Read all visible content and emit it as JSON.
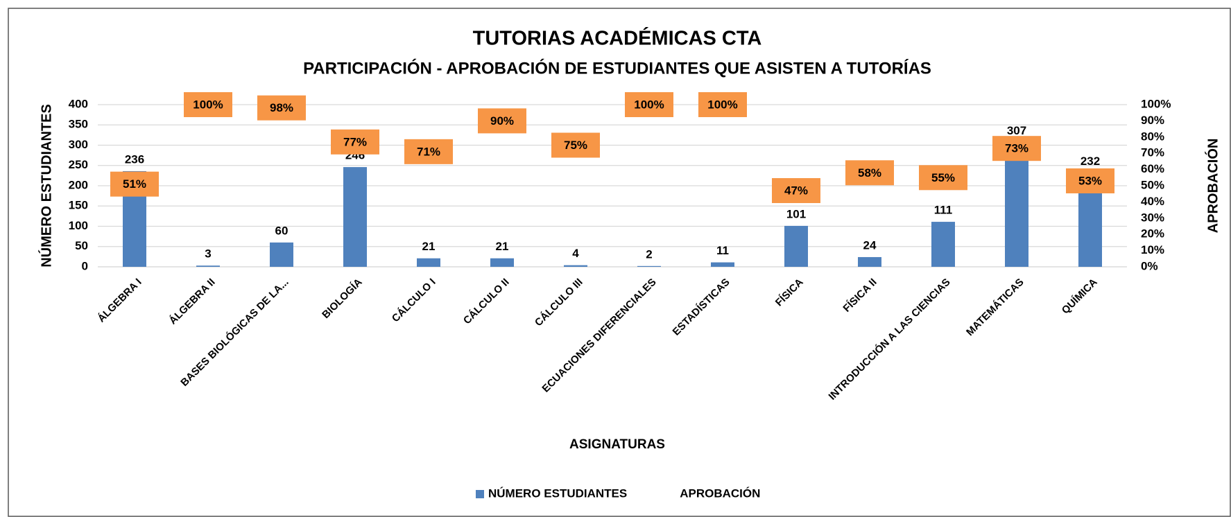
{
  "chart_data": {
    "type": "bar",
    "title": "TUTORIAS ACADÉMICAS CTA",
    "subtitle": "PARTICIPACIÓN - APROBACIÓN DE ESTUDIANTES QUE ASISTEN A TUTORÍAS",
    "x_label": "ASIGNATURAS",
    "y_label": "NÚMERO ESTUDIANTES",
    "y2_label": "APROBACIÓN",
    "categories": [
      "ÁLGEBRA I",
      "ÁLGEBRA II",
      "BASES BIOLÓGICAS DE LA...",
      "BIOLOGÍA",
      "CÁLCULO I",
      "CÁLCULO II",
      "CÁLCULO III",
      "ECUACIONES DIFERENCIALES",
      "ESTADÍSTICAS",
      "FÍSICA",
      "FÍSICA II",
      "INTRODUCCIÓN A LAS CIENCIAS",
      "MATEMÁTICAS",
      "QUÍMICA"
    ],
    "series": [
      {
        "name": "NÚMERO ESTUDIANTES",
        "color": "#4f81bd",
        "values": [
          236,
          3,
          60,
          246,
          21,
          21,
          4,
          2,
          11,
          101,
          24,
          111,
          307,
          232
        ]
      },
      {
        "name": "APROBACIÓN",
        "axis": "y2",
        "color": "#f79646",
        "values": [
          51,
          100,
          98,
          77,
          71,
          90,
          75,
          100,
          100,
          47,
          58,
          55,
          73,
          53
        ],
        "value_labels": [
          "51%",
          "100%",
          "98%",
          "77%",
          "71%",
          "90%",
          "75%",
          "100%",
          "100%",
          "47%",
          "58%",
          "55%",
          "73%",
          "53%"
        ]
      }
    ],
    "ylim": [
      0,
      400
    ],
    "yticks": [
      0,
      50,
      100,
      150,
      200,
      250,
      300,
      350,
      400
    ],
    "y2lim": [
      0,
      100
    ],
    "y2ticks": [
      {
        "value": 0,
        "label": "0%"
      },
      {
        "value": 10,
        "label": "10%"
      },
      {
        "value": 20,
        "label": "20%"
      },
      {
        "value": 30,
        "label": "30%"
      },
      {
        "value": 40,
        "label": "40%"
      },
      {
        "value": 50,
        "label": "50%"
      },
      {
        "value": 60,
        "label": "60%"
      },
      {
        "value": 70,
        "label": "70%"
      },
      {
        "value": 80,
        "label": "80%"
      },
      {
        "value": 90,
        "label": "90%"
      },
      {
        "value": 100,
        "label": "100%"
      }
    ],
    "grid": true,
    "legend": "bottom"
  }
}
